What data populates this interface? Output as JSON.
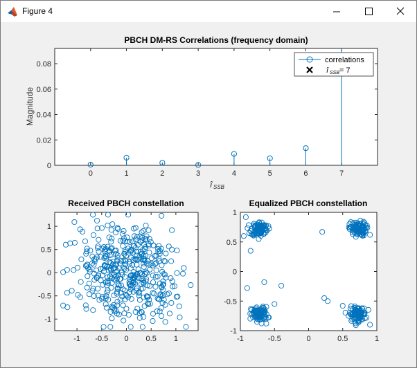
{
  "window": {
    "title": "Figure 4",
    "controls": {
      "minimize": "minimize",
      "maximize": "maximize",
      "close": "close"
    }
  },
  "colors": {
    "series": "#0072bd",
    "axes": "#262626",
    "background": "#f0f0f0",
    "axes_bg": "#ffffff"
  },
  "chart_data": [
    {
      "type": "stem",
      "title": "PBCH DM-RS Correlations (frequency domain)",
      "xlabel": "î_SSB",
      "ylabel": "Magnitude",
      "xlim": [
        -1,
        8
      ],
      "ylim": [
        0,
        0.092
      ],
      "xticks": [
        0,
        1,
        2,
        3,
        4,
        5,
        6,
        7
      ],
      "yticks": [
        0,
        0.02,
        0.04,
        0.06,
        0.08
      ],
      "ytick_labels": [
        "0",
        "0.02",
        "0.04",
        "0.06",
        "0.08"
      ],
      "series": [
        {
          "name": "correlations",
          "x": [
            0,
            1,
            2,
            3,
            4,
            5,
            6,
            7
          ],
          "values": [
            0.0005,
            0.006,
            0.002,
            0.0003,
            0.009,
            0.0055,
            0.0135,
            0.094
          ]
        }
      ],
      "legend": {
        "position": "top-right",
        "entries": [
          {
            "label": "correlations",
            "marker": "circle-line"
          },
          {
            "label_main": "î",
            "label_sub": "SSB",
            "label_rest": " = 7",
            "marker": "x"
          }
        ]
      }
    },
    {
      "type": "scatter",
      "title": "Received PBCH constellation",
      "xlim": [
        -1.45,
        1.45
      ],
      "ylim": [
        -1.25,
        1.3
      ],
      "xticks": [
        -1,
        -0.5,
        0,
        0.5,
        1
      ],
      "xtick_labels": [
        "-1",
        "-0.5",
        "0",
        "0.5",
        "1"
      ],
      "yticks": [
        -1,
        -0.5,
        0,
        0.5,
        1
      ],
      "ytick_labels": [
        "-1",
        "-0.5",
        "0",
        "0.5",
        "1"
      ],
      "points_note": "approx. 432 scattered QPSK symbols (noisy, unequalized)"
    },
    {
      "type": "scatter",
      "title": "Equalized PBCH constellation",
      "xlim": [
        -1,
        1
      ],
      "ylim": [
        -1,
        1
      ],
      "xticks": [
        -1,
        -0.5,
        0,
        0.5,
        1
      ],
      "xtick_labels": [
        "-1",
        "-0.5",
        "0",
        "0.5",
        "1"
      ],
      "yticks": [
        -1,
        -0.5,
        0,
        0.5,
        1
      ],
      "ytick_labels": [
        "-1",
        "-0.5",
        "0",
        "0.5",
        "1"
      ],
      "clusters": [
        {
          "center": [
            -0.72,
            0.72
          ],
          "spread": 0.06
        },
        {
          "center": [
            0.72,
            0.72
          ],
          "spread": 0.06
        },
        {
          "center": [
            -0.72,
            -0.72
          ],
          "spread": 0.06
        },
        {
          "center": [
            0.72,
            -0.72
          ],
          "spread": 0.06
        }
      ],
      "outliers": [
        [
          -0.92,
          0.92
        ],
        [
          -0.95,
          0.6
        ],
        [
          0.9,
          0.62
        ],
        [
          0.2,
          0.67
        ],
        [
          -0.85,
          0.35
        ],
        [
          -0.9,
          -0.28
        ],
        [
          -0.65,
          -0.18
        ],
        [
          -0.4,
          -0.24
        ],
        [
          0.23,
          -0.45
        ],
        [
          0.28,
          -0.5
        ],
        [
          -0.62,
          -0.88
        ],
        [
          -0.5,
          -0.55
        ],
        [
          0.5,
          -0.58
        ],
        [
          0.9,
          -0.9
        ]
      ]
    }
  ]
}
